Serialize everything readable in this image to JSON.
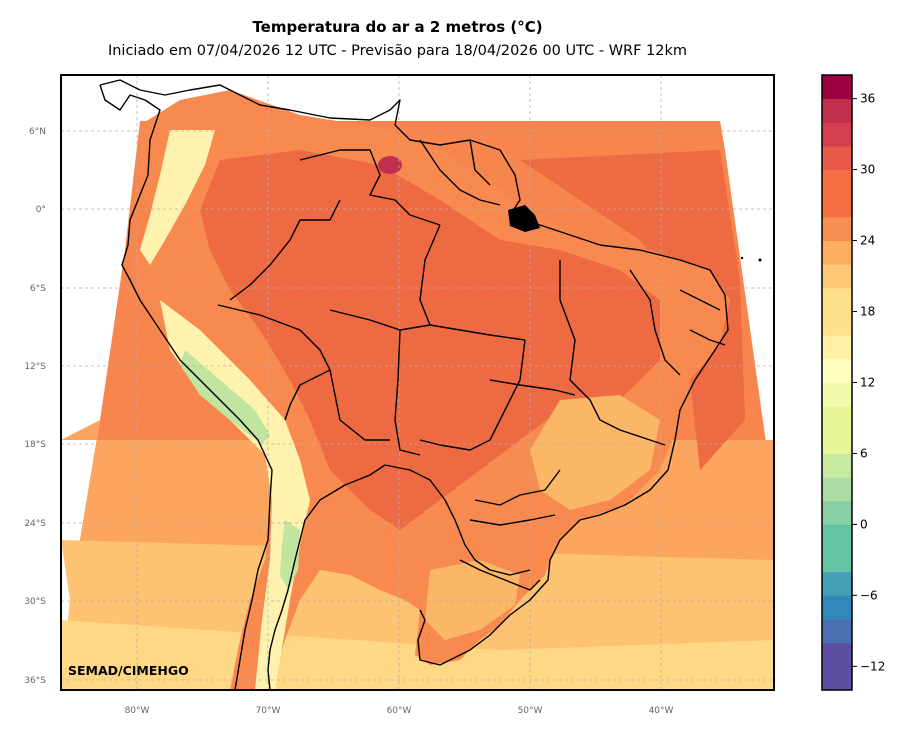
{
  "title": "Temperatura do ar a 2 metros (°C)",
  "subtitle": "Iniciado em 07/04/2026 12 UTC - Previsão para 18/04/2026 00 UTC - WRF 12km",
  "credit": "SEMAD/CIMEHGO",
  "lat_ticks": [
    "6°N",
    "0°",
    "6°S",
    "12°S",
    "18°S",
    "24°S",
    "30°S",
    "36°S"
  ],
  "lon_ticks": [
    "80°W",
    "70°W",
    "60°W",
    "50°W",
    "40°W"
  ],
  "colorbar": {
    "min": -14,
    "max": 38,
    "step": 2,
    "tick_labels": [
      "36",
      "30",
      "24",
      "18",
      "12",
      "6",
      "0",
      "−6",
      "−12"
    ],
    "colors": [
      "#5e4fa2",
      "#4a6fb0",
      "#3288bd",
      "#439fb5",
      "#66c2a5",
      "#87cfa4",
      "#abdda4",
      "#c8e9a0",
      "#e6f598",
      "#f4faac",
      "#ffffbf",
      "#fff0a6",
      "#fee08b",
      "#fdc877",
      "#fdae61",
      "#f98e52",
      "#f46d43",
      "#e85a47",
      "#d53e4f",
      "#c0304d",
      "#9e0142"
    ]
  },
  "map_colors": {
    "ocean_warm": "#f7854e",
    "ocean_mid": "#fba55e",
    "ocean_cool": "#fdc272",
    "ocean_cold": "#fed884",
    "land_hot": "#ee6a43",
    "land": "#f88a50",
    "land_mild": "#fcb766",
    "andes_cool": "#fff2ae",
    "andes_cold": "#bfe5a0",
    "hotspot": "#c2304d",
    "border": "#000000"
  }
}
